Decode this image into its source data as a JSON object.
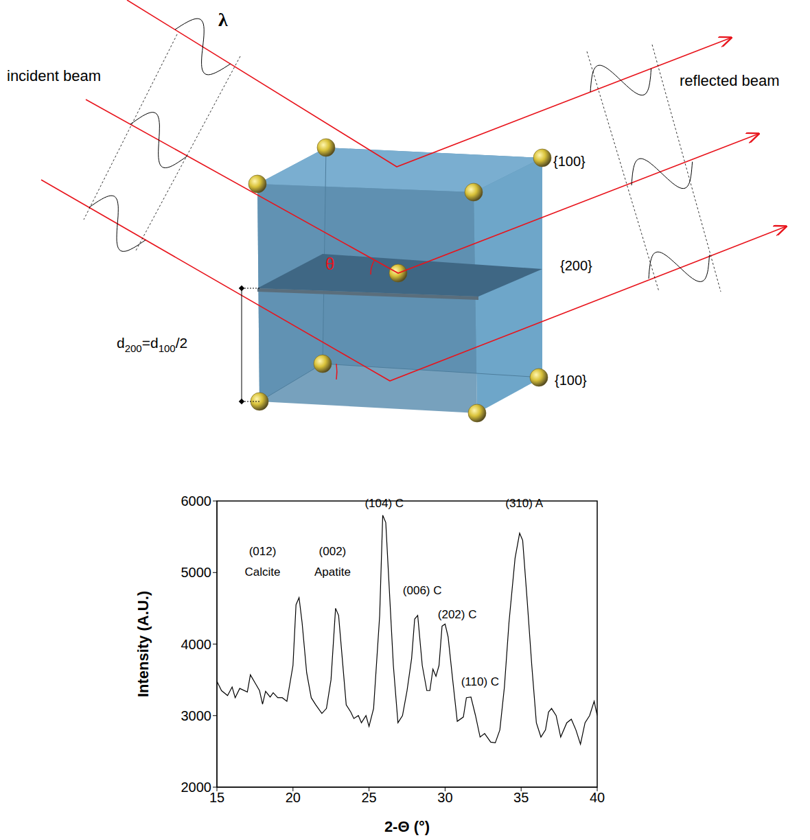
{
  "diagram": {
    "wavelength_label": "λ",
    "incident_label": "incident beam",
    "reflected_label": "reflected beam",
    "plane_labels": [
      "{100}",
      "{200}",
      "{100}"
    ],
    "angle_label": "θ",
    "spacing_label": [
      {
        "text": "d"
      },
      {
        "text": "200",
        "sub": true
      },
      {
        "text": "=d"
      },
      {
        "text": "100",
        "sub": true
      },
      {
        "text": "/2"
      }
    ]
  },
  "chart_data": {
    "type": "line",
    "x_label": "2-Θ (°)",
    "y_label": "Intensity (A.U.)",
    "xlim": [
      15,
      40
    ],
    "xticks": [
      15,
      20,
      25,
      30,
      35,
      40
    ],
    "ylim": [
      2000,
      6000
    ],
    "yticks": [
      2000,
      3000,
      4000,
      5000,
      6000
    ],
    "grid": false,
    "color": "#000000",
    "x": [
      15,
      15.3,
      15.7,
      16,
      16.2,
      16.5,
      17,
      17.2,
      17.5,
      17.8,
      18,
      18.2,
      18.5,
      18.7,
      19,
      19.3,
      19.6,
      20,
      20.2,
      20.4,
      20.6,
      20.9,
      21.2,
      21.5,
      21.9,
      22.2,
      22.5,
      22.8,
      23,
      23.2,
      23.5,
      23.8,
      24,
      24.3,
      24.5,
      24.8,
      25,
      25.3,
      25.7,
      25.9,
      26.1,
      26.3,
      26.6,
      26.9,
      27.2,
      27.5,
      27.8,
      28,
      28.2,
      28.5,
      28.8,
      29,
      29.2,
      29.4,
      29.6,
      29.8,
      30,
      30.2,
      30.5,
      30.8,
      31.2,
      31.4,
      31.7,
      32,
      32.3,
      32.6,
      33,
      33.3,
      33.6,
      33.9,
      34.2,
      34.6,
      34.9,
      35.1,
      35.4,
      35.7,
      36,
      36.3,
      36.6,
      36.8,
      37,
      37.3,
      37.6,
      38,
      38.3,
      38.6,
      38.9,
      39.2,
      39.5,
      39.8,
      40
    ],
    "values": [
      3480,
      3350,
      3280,
      3400,
      3250,
      3380,
      3330,
      3570,
      3460,
      3350,
      3160,
      3340,
      3260,
      3320,
      3250,
      3250,
      3200,
      3700,
      4550,
      4650,
      4300,
      3600,
      3250,
      3150,
      3030,
      3100,
      3500,
      4500,
      4400,
      3900,
      3150,
      3050,
      2960,
      3000,
      2900,
      3000,
      2850,
      3100,
      4400,
      5800,
      5700,
      4900,
      3700,
      2900,
      3000,
      3350,
      3800,
      4350,
      4400,
      3700,
      3350,
      3350,
      3650,
      3550,
      3700,
      4250,
      4280,
      4100,
      3500,
      2920,
      2980,
      3250,
      3260,
      3000,
      2700,
      2750,
      2630,
      2620,
      2800,
      3400,
      4300,
      5200,
      5550,
      5450,
      4600,
      3700,
      2900,
      2700,
      2800,
      3050,
      3100,
      3000,
      2700,
      2900,
      2950,
      2800,
      2600,
      2900,
      3000,
      3200,
      3000
    ],
    "annotations": [
      {
        "text": [
          "(012)",
          "Calcite"
        ],
        "x": 18,
        "y": 5300
      },
      {
        "text": [
          "(002)",
          "Apatite"
        ],
        "x": 22.6,
        "y": 5300
      },
      {
        "text": [
          "(104) C"
        ],
        "x": 26,
        "y": 5970
      },
      {
        "text": [
          "(006) C"
        ],
        "x": 28.5,
        "y": 4750
      },
      {
        "text": [
          "(202) C"
        ],
        "x": 30.8,
        "y": 4415
      },
      {
        "text": [
          "(110) C"
        ],
        "x": 32.3,
        "y": 3475
      },
      {
        "text": [
          "(310) A"
        ],
        "x": 35.2,
        "y": 5970
      }
    ]
  }
}
